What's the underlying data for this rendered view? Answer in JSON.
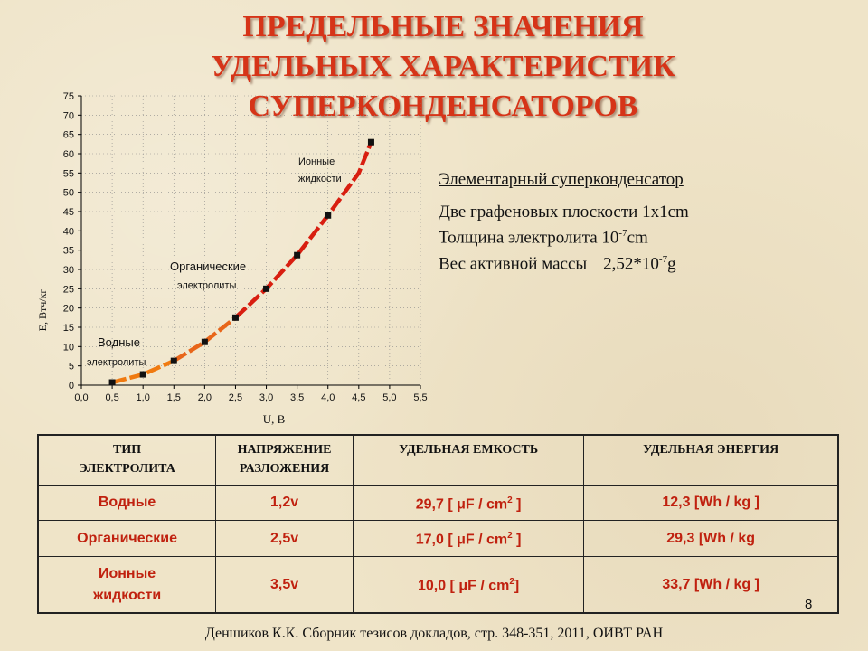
{
  "title": {
    "line1": "ПРЕДЕЛЬНЫЕ ЗНАЧЕНИЯ",
    "line2": "УДЕЛЬНЫХ ХАРАКТЕРИСТИК",
    "line3": "СУПЕРКОНДЕНСАТОРОВ"
  },
  "chart_data": {
    "type": "line",
    "title": "",
    "xlabel": "U, В",
    "ylabel": "E, Втч/кг",
    "xlim": [
      0,
      5.5
    ],
    "ylim": [
      0,
      75
    ],
    "x_ticks": [
      "0,0",
      "0,5",
      "1,0",
      "1,5",
      "2,0",
      "2,5",
      "3,0",
      "3,5",
      "4,0",
      "4,5",
      "5,0",
      "5,5"
    ],
    "y_ticks": [
      "0",
      "5",
      "10",
      "15",
      "20",
      "25",
      "30",
      "35",
      "40",
      "45",
      "50",
      "55",
      "60",
      "65",
      "70",
      "75"
    ],
    "grid": "dotted",
    "series": [
      {
        "color": "#f07a10",
        "x": [
          0.5,
          1.0,
          1.5
        ],
        "y": [
          0.7,
          2.8,
          6.3
        ]
      },
      {
        "color": "#e8661a",
        "x": [
          1.5,
          2.0,
          2.5
        ],
        "y": [
          6.3,
          11.2,
          17.5
        ]
      },
      {
        "color": "#d81e10",
        "x": [
          2.5,
          3.0,
          3.5,
          4.0,
          4.5,
          4.7
        ],
        "y": [
          17.5,
          25.0,
          33.7,
          44.0,
          55.0,
          63.0
        ]
      }
    ],
    "markers": {
      "x": [
        0.5,
        1.0,
        1.5,
        2.0,
        2.5,
        3.0,
        3.5,
        4.0,
        4.7
      ],
      "y": [
        0.7,
        2.8,
        6.3,
        11.2,
        17.5,
        25.0,
        33.7,
        44.0,
        63.0
      ]
    },
    "annotations": {
      "water": [
        "Водные",
        "электролиты"
      ],
      "organic": [
        "Органические",
        "электролиты"
      ],
      "ionic": [
        "Ионные",
        "жидкости"
      ]
    }
  },
  "info": {
    "line1": "Элементарный суперконденсатор",
    "line2": "Две графеновых плоскости 1x1cm",
    "line3_text": "Толщина электролита 10",
    "line3_exp": "-7",
    "line3_unit": "cm",
    "line4_label": "Вес активной массы",
    "line4_value": "2,52*10",
    "line4_exp": "-7",
    "line4_unit": "g"
  },
  "table": {
    "headers": {
      "type_line1": "ТИП",
      "type_line2": "ЭЛЕКТРОЛИТА",
      "voltage_line1": "НАПРЯЖЕНИЕ",
      "voltage_line2": "РАЗЛОЖЕНИЯ",
      "capacity": "УДЕЛЬНАЯ ЕМКОСТЬ",
      "energy": "УДЕЛЬНАЯ ЭНЕРГИЯ"
    },
    "rows": [
      {
        "type": "Водные",
        "voltage": "1,2v",
        "cap_value": "29,7 [ μF / cm",
        "cap_exp": "2",
        "cap_close": " ]",
        "energy": "12,3 [Wh / kg ]"
      },
      {
        "type": "Органические",
        "voltage": "2,5v",
        "cap_value": "17,0 [ μF / cm",
        "cap_exp": "2",
        "cap_close": " ]",
        "energy": "29,3 [Wh / kg"
      },
      {
        "type_line1": "Ионные",
        "type_line2": "жидкости",
        "voltage": "3,5v",
        "cap_value": "10,0 [ μF / cm",
        "cap_exp": "2",
        "cap_close": "]",
        "energy": "33,7 [Wh / kg ]"
      }
    ]
  },
  "footer": {
    "source": "Деншиков К.К. Сборник тезисов докладов, стр. 348-351, 2011, ОИВТ РАН",
    "page_number": "8"
  }
}
